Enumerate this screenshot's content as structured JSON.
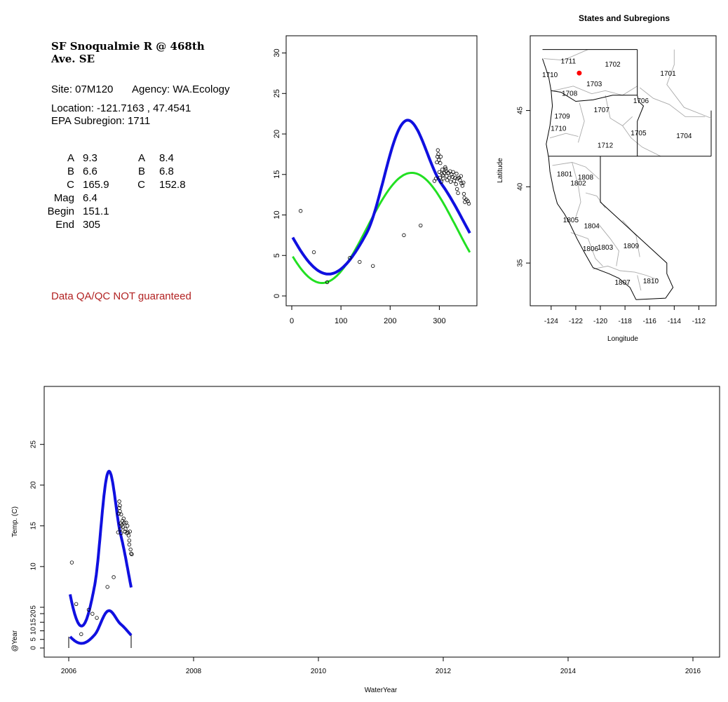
{
  "site": {
    "title_line1": "SF Snoqualmie R @ 468th",
    "title_line2": "Ave. SE",
    "site_text": "Site: 07M120",
    "agency_text": "Agency: WA.Ecology",
    "location_text": "Location: -121.7163 , 47.4541",
    "subregion_text": "EPA Subregion: 1711",
    "params": [
      {
        "label": "A",
        "v1": "9.3",
        "label2": "A",
        "v2": "8.4"
      },
      {
        "label": "B",
        "v1": "6.6",
        "label2": "B",
        "v2": "6.8"
      },
      {
        "label": "C",
        "v1": "165.9",
        "label2": "C",
        "v2": "152.8"
      },
      {
        "label": "Mag",
        "v1": "6.4"
      },
      {
        "label": "Begin",
        "v1": "151.1"
      },
      {
        "label": "End",
        "v1": "305"
      }
    ],
    "disclaimer": "Data QA/QC NOT guaranteed",
    "colors": {
      "disclaimer": "#b22222",
      "fit_green": "#22e022",
      "fit_blue": "#1010e0",
      "site_marker": "#ff0000"
    }
  },
  "chart_data": [
    {
      "type": "scatter",
      "xlim": [
        0,
        365
      ],
      "ylim": [
        0,
        31
      ],
      "xticks": [
        0,
        100,
        200,
        300
      ],
      "yticks": [
        0,
        5,
        10,
        15,
        20,
        25,
        30
      ],
      "points": [
        [
          18,
          10.5
        ],
        [
          45,
          5.4
        ],
        [
          72,
          1.7
        ],
        [
          118,
          4.7
        ],
        [
          138,
          4.2
        ],
        [
          165,
          3.7
        ],
        [
          228,
          7.5
        ],
        [
          262,
          8.7
        ],
        [
          290,
          14.2
        ],
        [
          293,
          14.5
        ],
        [
          295,
          16.5
        ],
        [
          296,
          17.2
        ],
        [
          297,
          18.0
        ],
        [
          298,
          17.5
        ],
        [
          299,
          16.8
        ],
        [
          300,
          15.3
        ],
        [
          301,
          14.6
        ],
        [
          302,
          16.4
        ],
        [
          303,
          17.2
        ],
        [
          304,
          14.1
        ],
        [
          305,
          15.1
        ],
        [
          306,
          15.6
        ],
        [
          307,
          14.9
        ],
        [
          308,
          14.5
        ],
        [
          310,
          15.2
        ],
        [
          312,
          15.9
        ],
        [
          313,
          15.7
        ],
        [
          314,
          15.4
        ],
        [
          315,
          14.8
        ],
        [
          316,
          14.3
        ],
        [
          318,
          15.2
        ],
        [
          320,
          14.6
        ],
        [
          322,
          15.4
        ],
        [
          323,
          14.1
        ],
        [
          325,
          15.0
        ],
        [
          327,
          14.7
        ],
        [
          328,
          15.3
        ],
        [
          330,
          14.2
        ],
        [
          332,
          14.6
        ],
        [
          334,
          13.8
        ],
        [
          335,
          15.1
        ],
        [
          336,
          13.2
        ],
        [
          337,
          14.5
        ],
        [
          338,
          12.7
        ],
        [
          340,
          14.6
        ],
        [
          342,
          14.3
        ],
        [
          344,
          14.8
        ],
        [
          345,
          13.9
        ],
        [
          347,
          13.6
        ],
        [
          349,
          14.0
        ],
        [
          350,
          12.6
        ],
        [
          351,
          12.1
        ],
        [
          352,
          11.6
        ],
        [
          355,
          11.9
        ],
        [
          358,
          11.7
        ],
        [
          360,
          11.4
        ]
      ],
      "series": [
        {
          "color": "#22e022",
          "A": 8.4,
          "B": 6.8,
          "C": 152.8
        },
        {
          "color": "#1010e0",
          "A": 9.3,
          "B": 6.6,
          "C": 165.9,
          "mag": 6.4,
          "begin": 151.1,
          "end": 305
        }
      ]
    },
    {
      "type": "map",
      "title": "States and Subregions",
      "xlabel": "Longitude",
      "ylabel": "Latitude",
      "xlim": [
        -125.7,
        -110.6
      ],
      "ylim": [
        32.2,
        49.9
      ],
      "xticks": [
        -124,
        -122,
        -120,
        -118,
        -116,
        -114,
        -112
      ],
      "yticks": [
        35,
        40,
        45
      ],
      "site": [
        -121.7163,
        47.4541
      ],
      "region_labels": [
        {
          "text": "1711",
          "lon": -122.6,
          "lat": 48.2
        },
        {
          "text": "1702",
          "lon": -119.0,
          "lat": 48.0
        },
        {
          "text": "1701",
          "lon": -114.5,
          "lat": 47.4
        },
        {
          "text": "1710",
          "lon": -124.1,
          "lat": 47.3
        },
        {
          "text": "1703",
          "lon": -120.5,
          "lat": 46.7
        },
        {
          "text": "1708",
          "lon": -122.5,
          "lat": 46.1
        },
        {
          "text": "1706",
          "lon": -116.7,
          "lat": 45.6
        },
        {
          "text": "1707",
          "lon": -119.9,
          "lat": 45.0
        },
        {
          "text": "1709",
          "lon": -123.1,
          "lat": 44.6
        },
        {
          "text": "1710",
          "lon": -123.4,
          "lat": 43.8
        },
        {
          "text": "1705",
          "lon": -116.9,
          "lat": 43.5
        },
        {
          "text": "1704",
          "lon": -113.2,
          "lat": 43.3
        },
        {
          "text": "1712",
          "lon": -119.6,
          "lat": 42.7
        },
        {
          "text": "1801",
          "lon": -122.9,
          "lat": 40.8
        },
        {
          "text": "1808",
          "lon": -121.2,
          "lat": 40.6
        },
        {
          "text": "1802",
          "lon": -121.8,
          "lat": 40.2
        },
        {
          "text": "1805",
          "lon": -122.4,
          "lat": 37.8
        },
        {
          "text": "1804",
          "lon": -120.7,
          "lat": 37.4
        },
        {
          "text": "1806",
          "lon": -120.8,
          "lat": 35.9
        },
        {
          "text": "1803",
          "lon": -119.6,
          "lat": 36.0
        },
        {
          "text": "1809",
          "lon": -117.5,
          "lat": 36.1
        },
        {
          "text": "1807",
          "lon": -118.2,
          "lat": 33.7
        },
        {
          "text": "1810",
          "lon": -115.9,
          "lat": 33.8
        }
      ]
    },
    {
      "type": "scatter",
      "xlabel": "WaterYear",
      "ylabel": "Temp. (C)",
      "ylabel2": "@Year",
      "xlim": [
        2005.9,
        2016.4
      ],
      "ylim": [
        0,
        31
      ],
      "ylim2": [
        0,
        30
      ],
      "xticks": [
        2006,
        2008,
        2010,
        2012,
        2014,
        2016
      ],
      "yticks": [
        5,
        10,
        15,
        20,
        25
      ],
      "yticks2": [
        0,
        5,
        10,
        15,
        20
      ],
      "points": [
        [
          2006.05,
          10.5
        ],
        [
          2006.12,
          5.4
        ],
        [
          2006.2,
          1.7
        ],
        [
          2006.32,
          4.7
        ],
        [
          2006.38,
          4.2
        ],
        [
          2006.45,
          3.7
        ],
        [
          2006.62,
          7.5
        ],
        [
          2006.72,
          8.7
        ],
        [
          2006.79,
          14.2
        ],
        [
          2006.8,
          16.5
        ],
        [
          2006.81,
          17.2
        ],
        [
          2006.81,
          18.0
        ],
        [
          2006.82,
          17.5
        ],
        [
          2006.82,
          16.8
        ],
        [
          2006.83,
          15.3
        ],
        [
          2006.83,
          14.6
        ],
        [
          2006.84,
          16.4
        ],
        [
          2006.84,
          14.1
        ],
        [
          2006.85,
          15.1
        ],
        [
          2006.86,
          15.6
        ],
        [
          2006.87,
          14.9
        ],
        [
          2006.88,
          15.9
        ],
        [
          2006.89,
          15.4
        ],
        [
          2006.9,
          14.3
        ],
        [
          2006.91,
          14.6
        ],
        [
          2006.92,
          15.4
        ],
        [
          2006.93,
          14.1
        ],
        [
          2006.94,
          15.0
        ],
        [
          2006.95,
          14.2
        ],
        [
          2006.96,
          13.8
        ],
        [
          2006.97,
          13.2
        ],
        [
          2006.97,
          12.7
        ],
        [
          2006.98,
          14.3
        ],
        [
          2006.99,
          12.1
        ],
        [
          2007.0,
          11.6
        ],
        [
          2007.01,
          11.5
        ]
      ],
      "seasonal": {
        "A": 9.3,
        "B": 6.6,
        "C": 165.9,
        "mag": 6.4,
        "begin": 151.1,
        "end": 305
      },
      "years_with_data": [
        2006
      ]
    }
  ]
}
